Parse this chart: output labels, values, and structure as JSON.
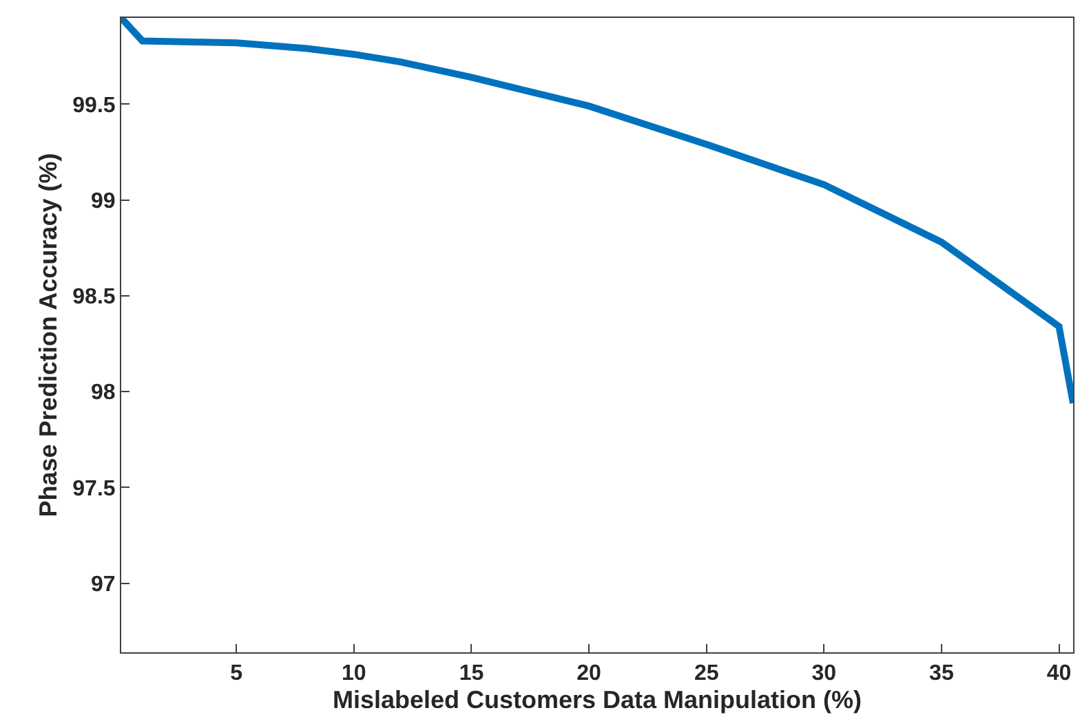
{
  "chart_data": {
    "type": "line",
    "xlabel": "Mislabeled Customers Data Manipulation (%)",
    "ylabel": "Phase Prediction Accuracy (%)",
    "x": [
      0.1,
      1,
      5,
      8,
      10,
      12,
      15,
      20,
      25,
      30,
      35,
      40,
      40.6
    ],
    "series": [
      {
        "color": "#0072bd",
        "values": [
          99.95,
          99.83,
          99.82,
          99.79,
          99.76,
          99.72,
          99.64,
          99.49,
          99.29,
          99.08,
          98.78,
          98.34,
          97.94
        ]
      }
    ],
    "xlim": [
      0.1,
      40.6
    ],
    "ylim": [
      96.64,
      99.95
    ],
    "xticks": [
      5,
      10,
      15,
      20,
      25,
      30,
      35,
      40
    ],
    "yticks": [
      97,
      97.5,
      98,
      98.5,
      99,
      99.5
    ],
    "marker": "none",
    "line_style": "solid"
  }
}
